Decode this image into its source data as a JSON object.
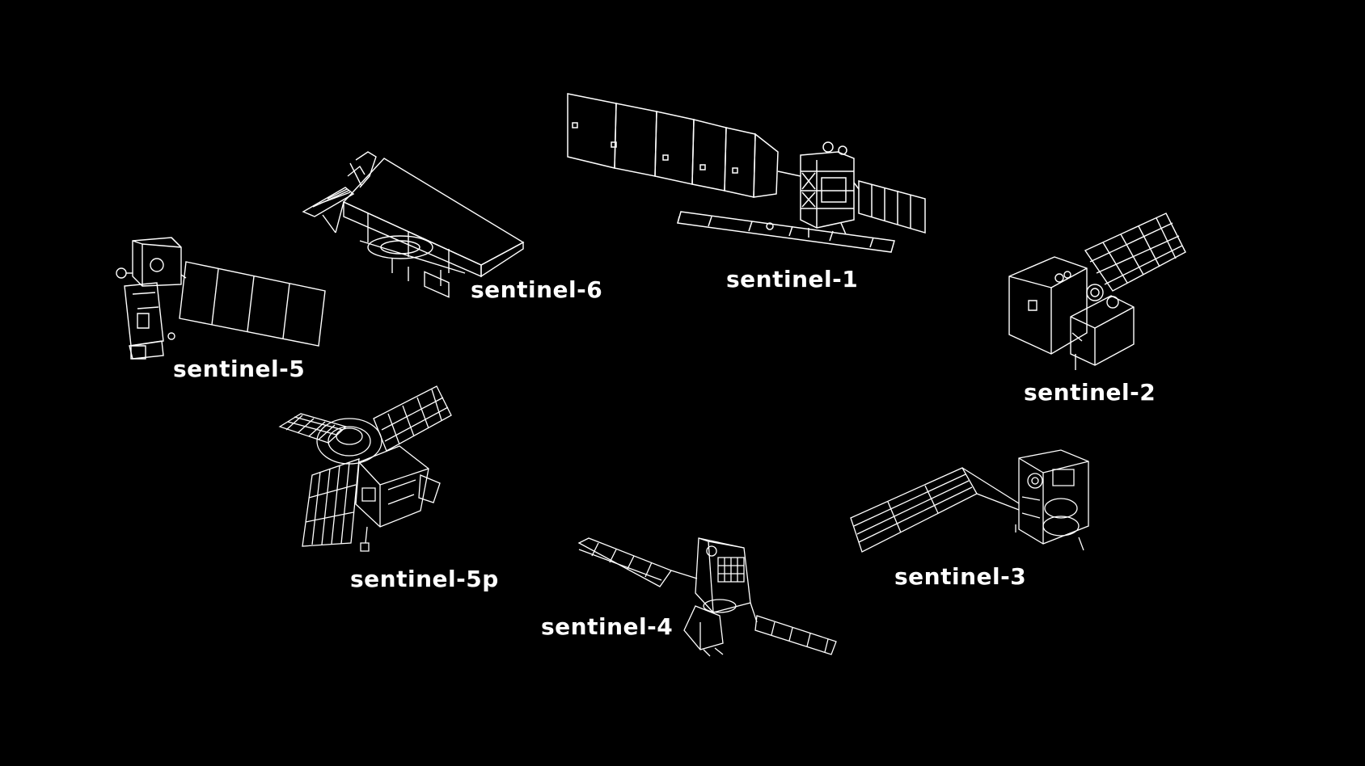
{
  "colors": {
    "background": "#000000",
    "line": "#ffffff",
    "label": "#ffffff"
  },
  "satellites": [
    {
      "id": "s1",
      "label": "sentinel-1",
      "icon": "sentinel-1-satellite-icon"
    },
    {
      "id": "s2",
      "label": "sentinel-2",
      "icon": "sentinel-2-satellite-icon"
    },
    {
      "id": "s3",
      "label": "sentinel-3",
      "icon": "sentinel-3-satellite-icon"
    },
    {
      "id": "s4",
      "label": "sentinel-4",
      "icon": "sentinel-4-satellite-icon"
    },
    {
      "id": "s5",
      "label": "sentinel-5",
      "icon": "sentinel-5-satellite-icon"
    },
    {
      "id": "s5p",
      "label": "sentinel-5p",
      "icon": "sentinel-5p-satellite-icon"
    },
    {
      "id": "s6",
      "label": "sentinel-6",
      "icon": "sentinel-6-satellite-icon"
    }
  ]
}
